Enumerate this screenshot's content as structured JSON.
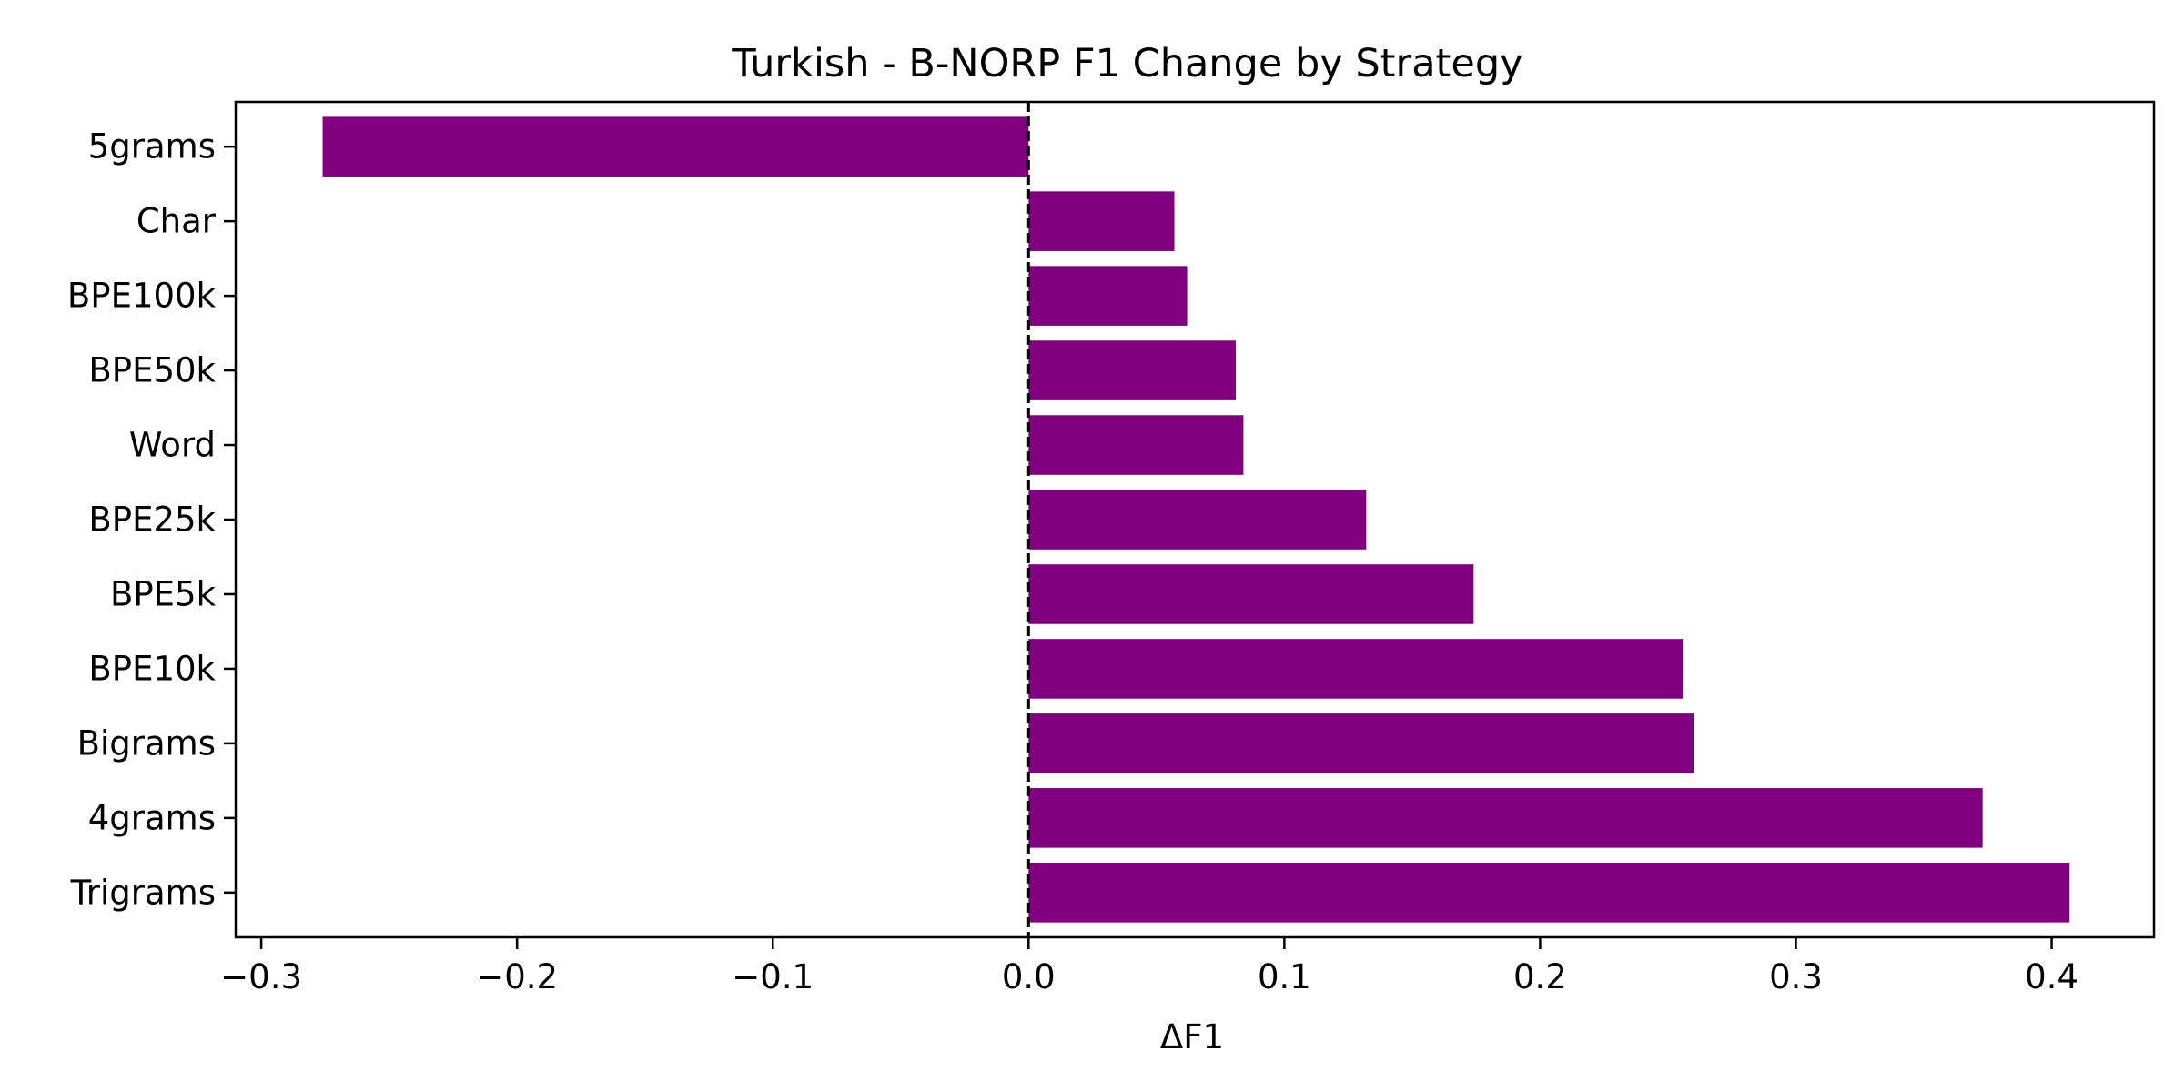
{
  "chart_data": {
    "type": "bar",
    "orientation": "horizontal",
    "title": "Turkish - B-NORP F1 Change by Strategy",
    "xlabel": "ΔF1",
    "ylabel": "",
    "categories": [
      "5grams",
      "Char",
      "BPE100k",
      "BPE50k",
      "Word",
      "BPE25k",
      "BPE5k",
      "BPE10k",
      "Bigrams",
      "4grams",
      "Trigrams"
    ],
    "values": [
      -0.276,
      0.057,
      0.062,
      0.081,
      0.084,
      0.132,
      0.174,
      0.256,
      0.26,
      0.373,
      0.407
    ],
    "xlim": [
      -0.31,
      0.44
    ],
    "xticks": [
      -0.3,
      -0.2,
      -0.1,
      0.0,
      0.1,
      0.2,
      0.3,
      0.4
    ],
    "xtick_labels": [
      "−0.3",
      "−0.2",
      "−0.1",
      "0.0",
      "0.1",
      "0.2",
      "0.3",
      "0.4"
    ],
    "bar_color": "#800080",
    "reference_line": {
      "x": 0,
      "style": "dashed",
      "color": "#000000"
    },
    "grid": false,
    "legend": "none"
  }
}
